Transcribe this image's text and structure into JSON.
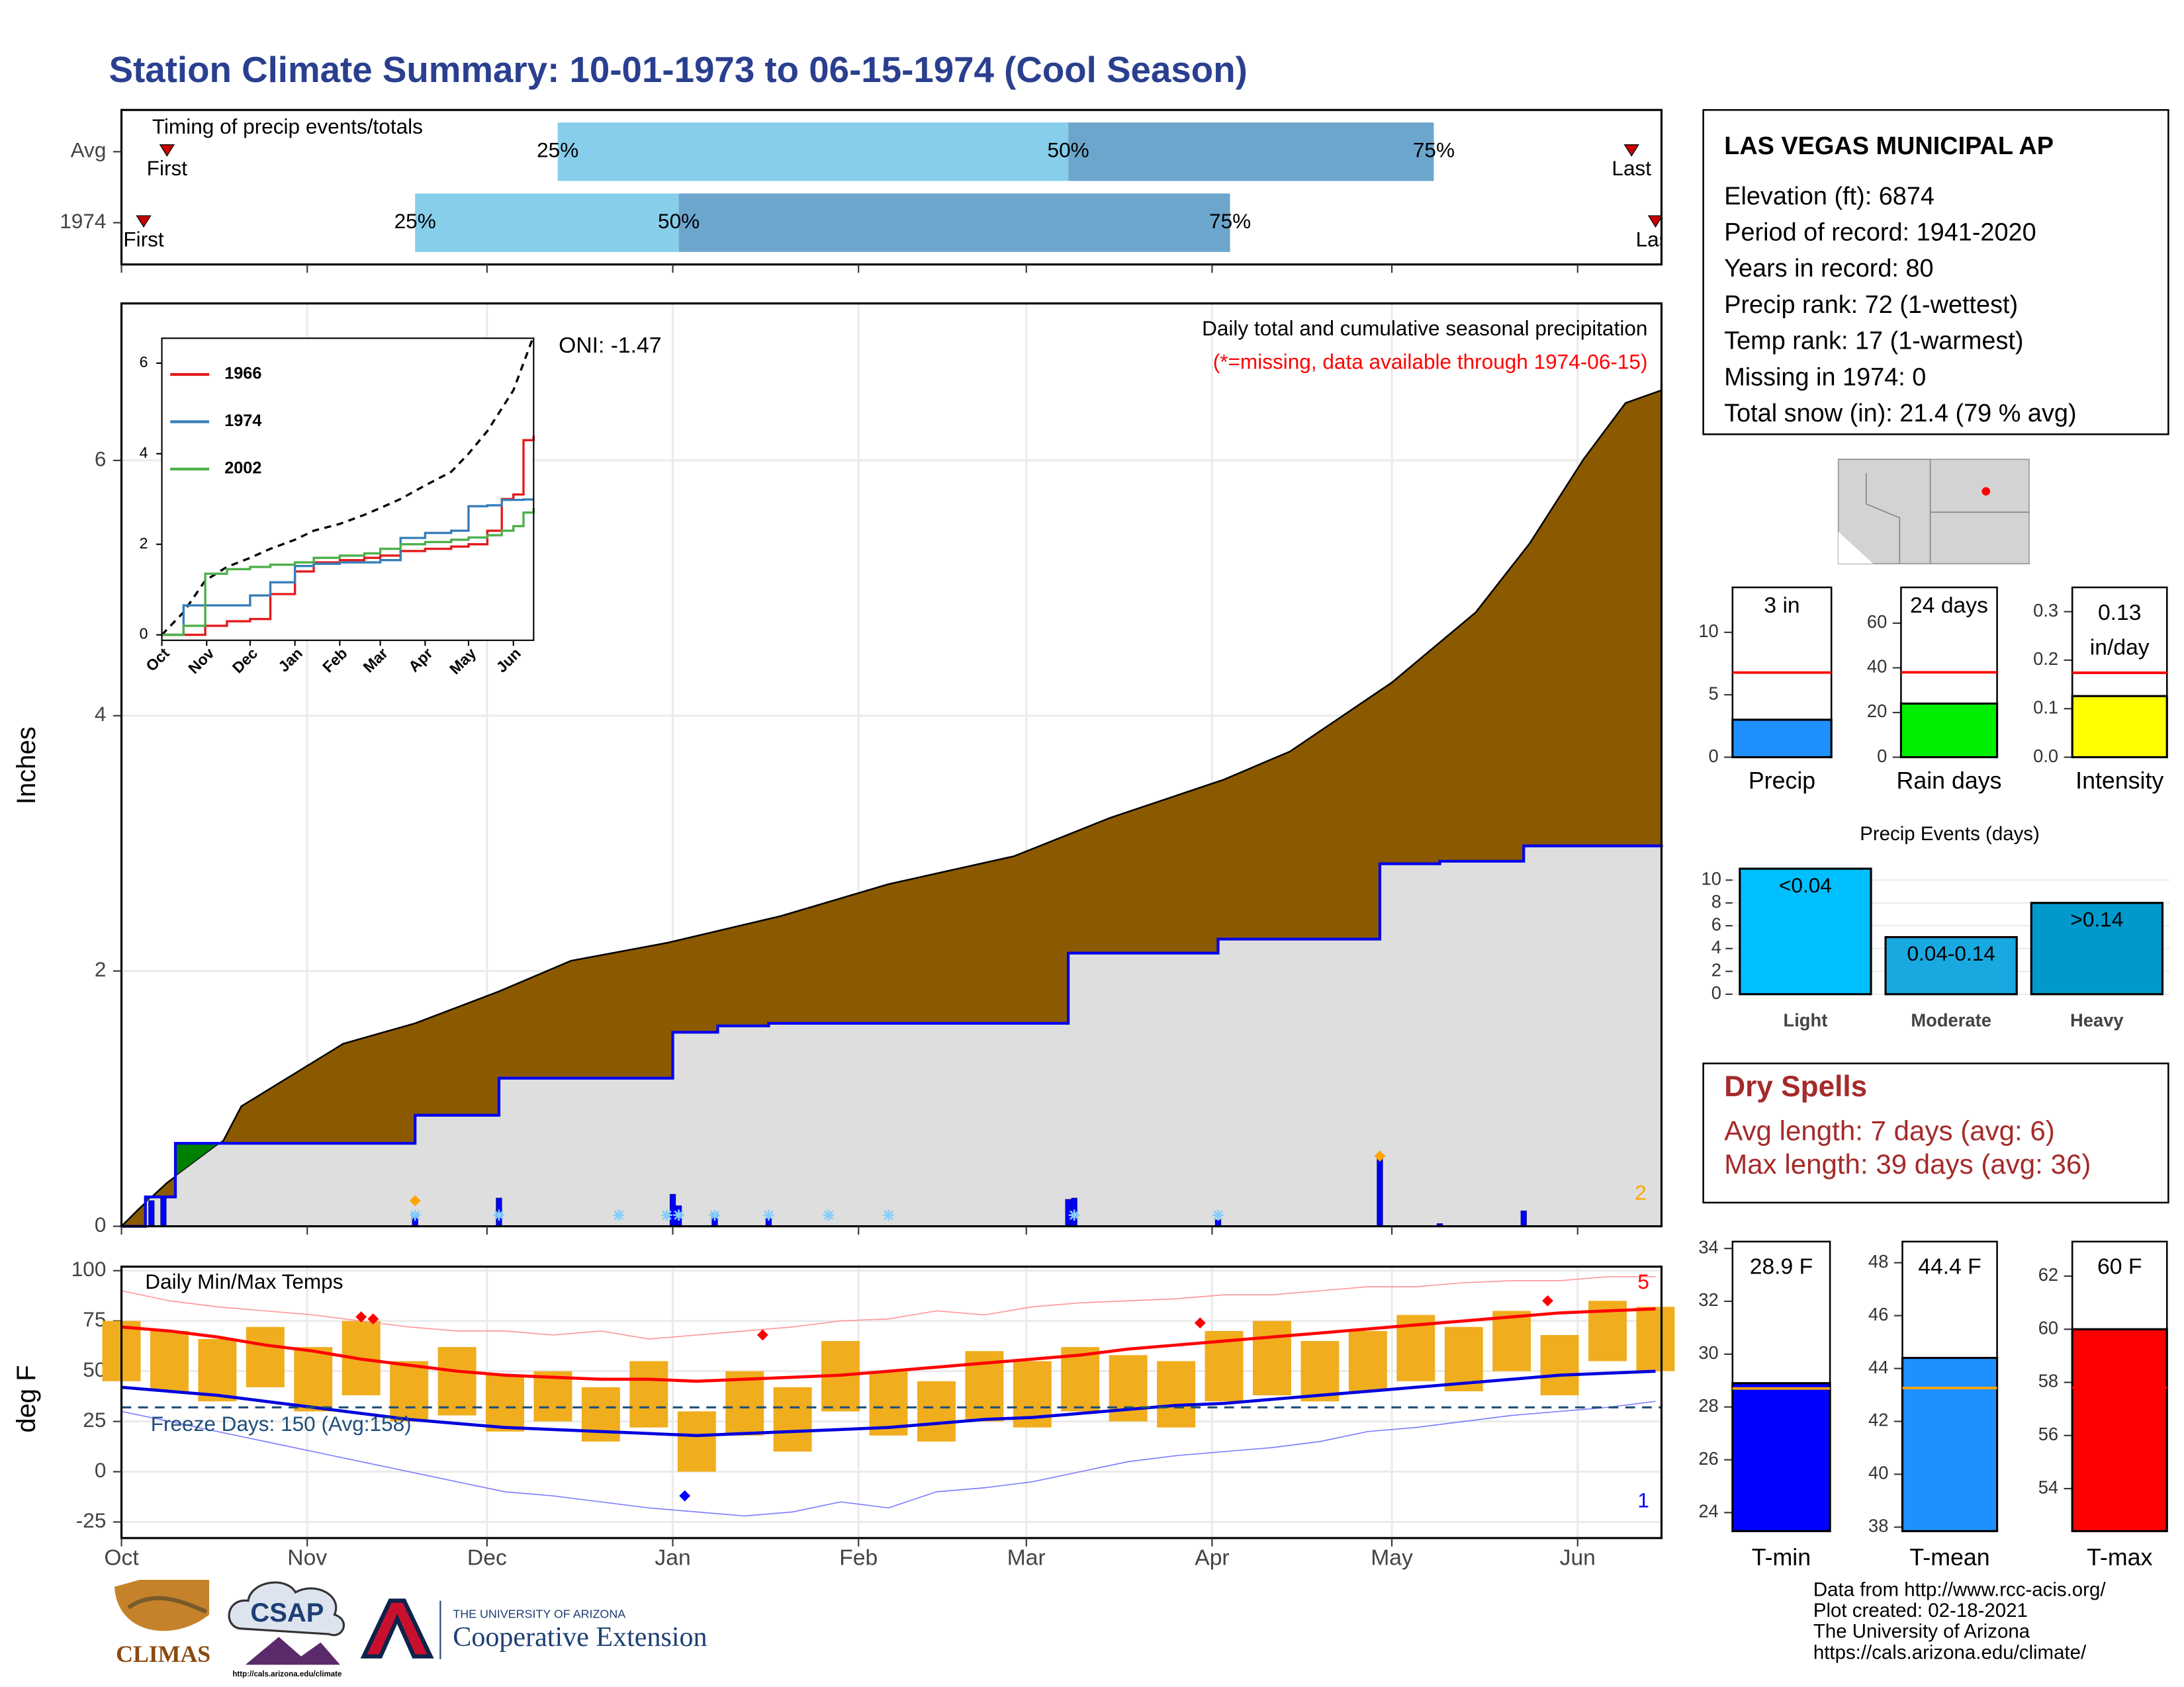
{
  "title": "Station Climate Summary: 10-01-1973 to 06-15-1974 (Cool Season)",
  "station": {
    "name": "LAS VEGAS MUNICIPAL AP",
    "lines": [
      "Elevation (ft): 6874",
      "Period of record: 1941-2020",
      "Years in record: 80",
      "Precip rank: 72 (1-wettest)",
      "Temp rank: 17 (1-warmest)",
      "Missing in 1974: 0",
      "Total snow (in): 21.4 (79 % avg)"
    ]
  },
  "dry_spells": {
    "title": "Dry Spells",
    "lines": [
      "Avg length: 7 days (avg: 6)",
      "Max length: 39 days (avg: 36)"
    ]
  },
  "footer": {
    "lines": [
      "Data from http://www.rcc-acis.org/",
      "Plot created: 02-18-2021",
      "The University of Arizona",
      "https://cals.arizona.edu/climate/"
    ]
  },
  "logos": {
    "climas": "CLIMAS",
    "csap": "CSAP",
    "csap_url": "http://cals.arizona.edu/climate",
    "university": "THE UNIVERSITY OF ARIZONA",
    "extension": "Cooperative Extension"
  },
  "chart_data": [
    {
      "type": "range",
      "title": "Timing of precip events/totals",
      "xlim": [
        0,
        257
      ],
      "categories": [
        "Avg",
        "1974"
      ],
      "first": [
        7.6,
        3.7
      ],
      "q25": [
        72.8,
        49
      ],
      "q50": [
        158,
        93
      ],
      "q75": [
        219,
        185
      ],
      "last": [
        252,
        256
      ],
      "quantile_labels": [
        "25%",
        "50%",
        "75%"
      ],
      "first_label": "First",
      "last_label": "Last",
      "colors": [
        "#87ceeb",
        "#6ca6cd"
      ],
      "marker_color": "#cc0000"
    },
    {
      "type": "area",
      "title": "Daily total and cumulative seasonal precipitation",
      "subtitle": "(*=missing, data available through 1974-06-15)",
      "annotation": "ONI: -1.47",
      "count_label": "2",
      "y_label": "Inches",
      "xlim": [
        0,
        257
      ],
      "ylim": [
        0,
        7.23
      ],
      "yticks": [
        0,
        2,
        4,
        6
      ],
      "grid": true,
      "avg": {
        "x": [
          0,
          3,
          7.6,
          17,
          20,
          37,
          49,
          63,
          75,
          91,
          110,
          128,
          149,
          165,
          184,
          195,
          212,
          226,
          235,
          244,
          251,
          257
        ],
        "values": [
          0,
          0.14,
          0.34,
          0.67,
          0.94,
          1.43,
          1.59,
          1.84,
          2.08,
          2.22,
          2.43,
          2.68,
          2.9,
          3.2,
          3.5,
          3.72,
          4.26,
          4.81,
          5.35,
          6.01,
          6.45,
          6.55
        ],
        "color": "#8b5a00"
      },
      "season": {
        "x": [
          0,
          4,
          9,
          49,
          63,
          92,
          99.5,
          108,
          158,
          183,
          210,
          220,
          234,
          257
        ],
        "values": [
          0,
          0.23,
          0.65,
          0.87,
          1.16,
          1.52,
          1.57,
          1.59,
          2.14,
          2.25,
          2.84,
          2.86,
          2.98,
          2.99
        ],
        "color": "#0000ee",
        "fill": "#dedede",
        "above_color": "#008000"
      },
      "daily": {
        "x": [
          5,
          7,
          49,
          63,
          92,
          93,
          99,
          108,
          158,
          159,
          183,
          210,
          220,
          234
        ],
        "values": [
          0.2,
          0.22,
          0.1,
          0.22,
          0.25,
          0.16,
          0.1,
          0.06,
          0.21,
          0.22,
          0.05,
          0.55,
          0.02,
          0.12
        ],
        "color": "#0000ff"
      },
      "highlight": {
        "x": [
          49,
          210
        ],
        "values": [
          0.2,
          0.55
        ],
        "color": "#ffa500"
      },
      "snow_days": [
        49,
        63,
        83,
        91,
        93,
        99,
        108,
        118,
        128,
        159,
        183
      ],
      "snow_color": "#87cefa"
    },
    {
      "type": "line",
      "xlim": [
        0,
        257
      ],
      "ylim": [
        -0.12,
        6.55
      ],
      "yticks": [
        0,
        2,
        4,
        6
      ],
      "xticks": [
        {
          "value": 0,
          "label": "Oct"
        },
        {
          "value": 31,
          "label": "Nov"
        },
        {
          "value": 61,
          "label": "Dec"
        },
        {
          "value": 92,
          "label": "Jan"
        },
        {
          "value": 123,
          "label": "Feb"
        },
        {
          "value": 151,
          "label": "Mar"
        },
        {
          "value": 182,
          "label": "Apr"
        },
        {
          "value": 212,
          "label": "May"
        },
        {
          "value": 243,
          "label": "Jun"
        }
      ],
      "x": [
        0,
        15,
        30,
        45,
        61,
        75,
        92,
        105,
        123,
        140,
        151,
        165,
        182,
        200,
        212,
        225,
        235,
        243,
        250,
        257
      ],
      "series": [
        {
          "name": "1966",
          "color": "#e41a1c",
          "values": [
            0,
            0,
            0.2,
            0.3,
            0.35,
            0.9,
            1.4,
            1.6,
            1.65,
            1.7,
            1.75,
            1.85,
            1.9,
            1.95,
            2.0,
            2.3,
            3.0,
            3.1,
            4.3,
            4.4
          ]
        },
        {
          "name": "1974",
          "color": "#377eb8",
          "values": [
            0,
            0.65,
            0.65,
            0.65,
            0.87,
            1.16,
            1.52,
            1.57,
            1.6,
            1.6,
            1.65,
            2.14,
            2.25,
            2.3,
            2.84,
            2.86,
            2.98,
            2.98,
            2.99,
            2.99
          ]
        },
        {
          "name": "2002",
          "color": "#4daf4a",
          "values": [
            0,
            0.2,
            1.35,
            1.45,
            1.5,
            1.55,
            1.6,
            1.7,
            1.75,
            1.8,
            1.9,
            2.0,
            2.05,
            2.1,
            2.15,
            2.2,
            2.3,
            2.4,
            2.7,
            2.8
          ]
        }
      ],
      "avg": {
        "values": [
          0,
          0.5,
          1.2,
          1.5,
          1.7,
          1.9,
          2.1,
          2.3,
          2.45,
          2.65,
          2.8,
          3.0,
          3.3,
          3.6,
          4.0,
          4.5,
          5.0,
          5.4,
          6.0,
          6.6
        ],
        "color": "#000000"
      }
    },
    {
      "type": "range",
      "title": "Daily Min/Max Temps",
      "y_label": "deg F",
      "xlim": [
        0,
        257
      ],
      "ylim": [
        -33,
        102
      ],
      "yticks": [
        -25,
        0,
        25,
        50,
        75,
        100
      ],
      "xticks": [
        {
          "value": 0,
          "label": "Oct"
        },
        {
          "value": 31,
          "label": "Nov"
        },
        {
          "value": 61,
          "label": "Dec"
        },
        {
          "value": 92,
          "label": "Jan"
        },
        {
          "value": 123,
          "label": "Feb"
        },
        {
          "value": 151,
          "label": "Mar"
        },
        {
          "value": 182,
          "label": "Apr"
        },
        {
          "value": 212,
          "label": "May"
        },
        {
          "value": 243,
          "label": "Jun"
        }
      ],
      "x": [
        0,
        8,
        16,
        24,
        32,
        40,
        48,
        56,
        64,
        72,
        80,
        88,
        96,
        104,
        112,
        120,
        128,
        136,
        144,
        152,
        160,
        168,
        176,
        184,
        192,
        200,
        208,
        216,
        224,
        232,
        240,
        248,
        256
      ],
      "tmax": [
        75,
        70,
        66,
        72,
        62,
        75,
        55,
        62,
        48,
        50,
        42,
        55,
        30,
        50,
        42,
        65,
        50,
        45,
        60,
        55,
        62,
        58,
        55,
        70,
        75,
        65,
        70,
        78,
        72,
        80,
        68,
        85,
        82
      ],
      "tmin": [
        45,
        40,
        35,
        42,
        30,
        38,
        25,
        28,
        20,
        25,
        15,
        22,
        0,
        18,
        10,
        30,
        18,
        15,
        25,
        22,
        30,
        25,
        22,
        35,
        38,
        35,
        40,
        45,
        40,
        50,
        38,
        55,
        50
      ],
      "bar_color": "#f0ad1e",
      "lines": [
        {
          "color": "#ff0000",
          "width": 2.2,
          "values": [
            72,
            70,
            67,
            63,
            60,
            56,
            53,
            50,
            48,
            47,
            46,
            46,
            45,
            46,
            47,
            48,
            50,
            52,
            54,
            56,
            58,
            61,
            63,
            65,
            67,
            69,
            71,
            73,
            75,
            77,
            79,
            80,
            81
          ]
        },
        {
          "color": "#0000dd",
          "width": 2.2,
          "values": [
            42,
            40,
            38,
            35,
            32,
            29,
            26,
            24,
            22,
            21,
            20,
            19,
            18,
            19,
            20,
            21,
            22,
            24,
            26,
            27,
            29,
            31,
            33,
            34,
            36,
            38,
            40,
            42,
            44,
            46,
            48,
            49,
            50
          ]
        },
        {
          "color": "#ff9a9a",
          "width": 0.8,
          "values": [
            90,
            85,
            82,
            80,
            78,
            75,
            72,
            70,
            70,
            68,
            70,
            66,
            68,
            70,
            72,
            75,
            76,
            80,
            78,
            82,
            84,
            85,
            86,
            88,
            88,
            90,
            92,
            92,
            94,
            95,
            95,
            97,
            97
          ]
        },
        {
          "color": "#8080ff",
          "width": 0.8,
          "values": [
            30,
            25,
            20,
            15,
            10,
            5,
            0,
            -5,
            -10,
            -12,
            -15,
            -18,
            -20,
            -22,
            -20,
            -15,
            -18,
            -10,
            -8,
            -5,
            0,
            5,
            8,
            10,
            12,
            15,
            20,
            22,
            25,
            28,
            30,
            32,
            35
          ]
        }
      ],
      "freeze": {
        "value": 32,
        "label": "Freeze Days: 150 (Avg:158)",
        "color": "#1f4e79"
      },
      "record_marks": {
        "x": [
          40,
          42,
          107,
          180,
          238
        ],
        "values": [
          77,
          76,
          68,
          74,
          85
        ],
        "color": "#ff0000",
        "count": "5"
      },
      "low_marks": {
        "x": [
          94
        ],
        "values": [
          -12
        ],
        "color": "#0000ff",
        "count": "1"
      }
    },
    {
      "type": "bar",
      "categories": [
        "Precip"
      ],
      "values": [
        3
      ],
      "value_labels": [
        "3 in"
      ],
      "avg": 6.78,
      "avg_color": "#ff0000",
      "color": "#1e90ff",
      "ylim": [
        0,
        13.6
      ],
      "yticks": [
        0,
        5,
        10
      ]
    },
    {
      "type": "bar",
      "categories": [
        "Rain days"
      ],
      "values": [
        24
      ],
      "value_labels": [
        "24 days"
      ],
      "avg": 38,
      "avg_color": "#ff0000",
      "color": "#00ee00",
      "ylim": [
        0,
        76
      ],
      "yticks": [
        0,
        20,
        40,
        60
      ]
    },
    {
      "type": "bar",
      "categories": [
        "Intensity"
      ],
      "values": [
        0.126
      ],
      "value_labels": [
        "0.13 in/day"
      ],
      "avg": 0.174,
      "avg_color": "#ff0000",
      "color": "#ffff00",
      "ylim": [
        0,
        0.35
      ],
      "yticks": [
        {
          "value": 0,
          "label": "0.0"
        },
        0.1,
        0.2,
        0.3
      ]
    },
    {
      "type": "bar",
      "title": "Precip Events (days)",
      "categories": [
        "Light",
        "Moderate",
        "Heavy"
      ],
      "values": [
        11,
        5,
        8
      ],
      "bar_labels": [
        "<0.04",
        "0.04-0.14",
        ">0.14"
      ],
      "colors": [
        "#00bfff",
        "#18a9e0",
        "#0099cc"
      ],
      "ylim": [
        -0.7,
        11.5
      ],
      "yticks": [
        0,
        2,
        4,
        6,
        8,
        10
      ],
      "grid": true
    },
    {
      "type": "bar",
      "categories": [
        "T-min"
      ],
      "values": [
        28.9
      ],
      "value_labels": [
        "28.9 F"
      ],
      "avg": 28.7,
      "avg_color": "#ffa500",
      "color": "#0000ff",
      "ylim": [
        23.3,
        34.26
      ],
      "yticks": [
        24,
        26,
        28,
        30,
        32,
        34
      ]
    },
    {
      "type": "bar",
      "categories": [
        "T-mean"
      ],
      "values": [
        44.4
      ],
      "value_labels": [
        "44.4 F"
      ],
      "avg": 43.26,
      "avg_color": "#ffa500",
      "color": "#1e90ff",
      "ylim": [
        37.85,
        48.8
      ],
      "yticks": [
        38,
        40,
        42,
        44,
        46,
        48
      ]
    },
    {
      "type": "bar",
      "categories": [
        "T-max"
      ],
      "values": [
        60
      ],
      "value_labels": [
        "60 F"
      ],
      "avg": 57.8,
      "avg_color": "#ff0000",
      "color": "#ff0000",
      "ylim": [
        52.4,
        63.3
      ],
      "yticks": [
        54,
        56,
        58,
        60,
        62
      ]
    }
  ]
}
